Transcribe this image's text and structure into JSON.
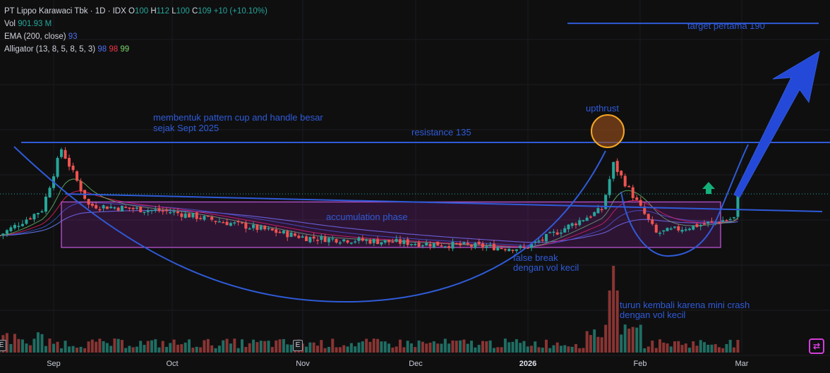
{
  "legend": {
    "symbol_line": "PT Lippo Karawaci Tbk · 1D · IDX",
    "o_label": "O",
    "o_value": "100",
    "h_label": "H",
    "h_value": "112",
    "l_label": "L",
    "l_value": "100",
    "c_label": "C",
    "c_value": "109",
    "change": "+10 (+10.10%)",
    "vol_label": "Vol",
    "vol_value": "901.93 M",
    "ema_label": "EMA (200, close)",
    "ema_value": "93",
    "alligator_label": "Alligator (13, 8, 5, 8, 5, 3)",
    "alligator_jaw": "98",
    "alligator_teeth": "98",
    "alligator_lips": "99"
  },
  "annotations": {
    "target": "target pertama 190",
    "cup_line1": "membentuk pattern cup and handle besar",
    "cup_line2": "sejak Sept 2025",
    "resistance": "resistance 135",
    "upthrust": "upthrust",
    "accumulation": "accumulation phase",
    "false_break_1": "false break",
    "false_break_2": "dengan vol kecil",
    "mini_crash_1": "turun kembali karena mini crash",
    "mini_crash_2": "dengan vol kecil"
  },
  "earnings_badge": "E",
  "xaxis": [
    "Sep",
    "Oct",
    "Nov",
    "Dec",
    "2026",
    "Feb",
    "Mar"
  ],
  "colors": {
    "up": "#26a69a",
    "down": "#ef5350",
    "drawing": "#2f5bd8",
    "box": "#9c27b0",
    "upthrust_circle": "#f5a623",
    "ema": "#5b6ee1",
    "jaw": "#3a5bd9",
    "teeth": "#e91e63",
    "lips": "#66bb6a"
  },
  "chart_data": {
    "type": "candlestick",
    "symbol": "PT Lippo Karawaci Tbk",
    "interval": "1D",
    "exchange": "IDX",
    "resistance": 135,
    "target": 190,
    "last": {
      "open": 100,
      "high": 112,
      "low": 100,
      "close": 109,
      "change": 10,
      "change_pct": 10.1
    },
    "ema200": 93,
    "alligator": {
      "jaw": 98,
      "teeth": 98,
      "lips": 99
    },
    "volume_last": "901.93 M",
    "close_segments": [
      {
        "from": "2025-08-18",
        "to": "2025-08-29",
        "start": 92,
        "end": 104
      },
      {
        "from": "2025-08-29",
        "to": "2025-09-03",
        "start": 104,
        "end": 132
      },
      {
        "from": "2025-09-03",
        "to": "2025-09-10",
        "start": 132,
        "end": 106
      },
      {
        "from": "2025-09-10",
        "to": "2025-10-01",
        "start": 106,
        "end": 103
      },
      {
        "from": "2025-10-01",
        "to": "2025-11-05",
        "start": 103,
        "end": 91
      },
      {
        "from": "2025-11-05",
        "to": "2025-12-31",
        "start": 91,
        "end": 86
      },
      {
        "from": "2025-12-31",
        "to": "2026-01-20",
        "start": 86,
        "end": 104
      },
      {
        "from": "2026-01-20",
        "to": "2026-01-23",
        "start": 104,
        "end": 125
      },
      {
        "from": "2026-01-23",
        "to": "2026-02-03",
        "start": 125,
        "end": 93
      },
      {
        "from": "2026-02-03",
        "to": "2026-02-23",
        "start": 93,
        "end": 100
      },
      {
        "from": "2026-02-23",
        "to": "2026-02-24",
        "start": 100,
        "end": 109
      }
    ],
    "volume_spike": {
      "date": "2026-01-23",
      "label": "high"
    }
  }
}
